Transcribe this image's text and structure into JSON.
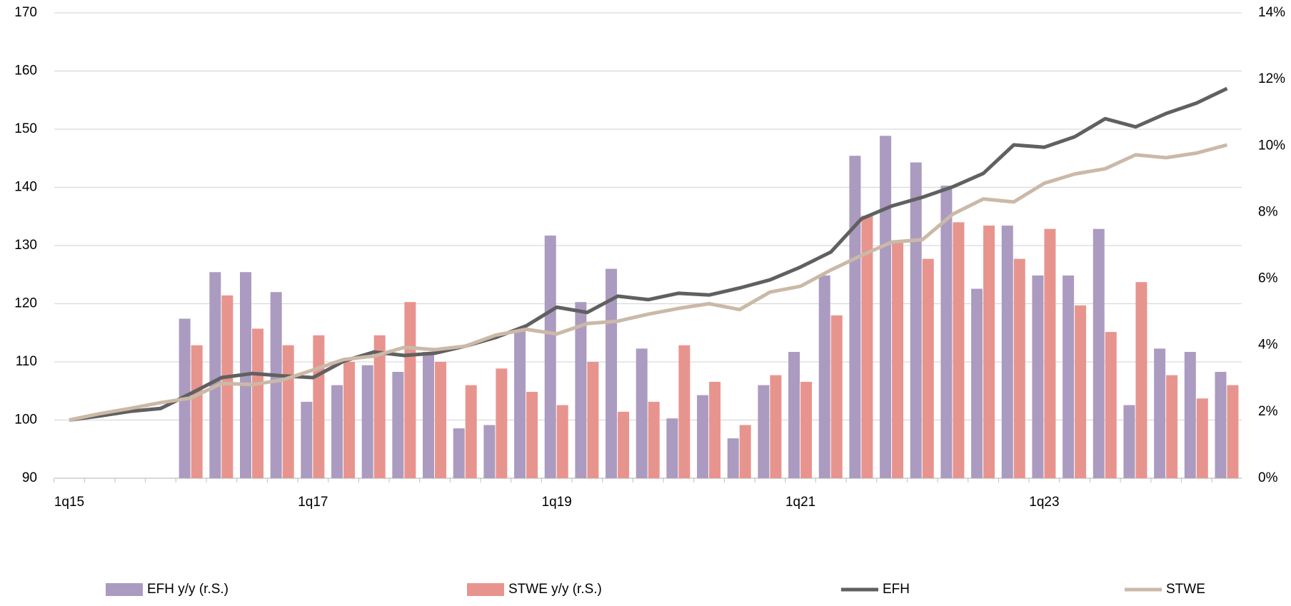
{
  "chart_data": {
    "type": "bar_line",
    "categories": [
      "1q15",
      null,
      null,
      null,
      null,
      null,
      null,
      null,
      "1q17",
      null,
      null,
      null,
      null,
      null,
      null,
      null,
      "1q19",
      null,
      null,
      null,
      null,
      null,
      null,
      null,
      "1q21",
      null,
      null,
      null,
      null,
      null,
      null,
      null,
      "1q23",
      null,
      null,
      null,
      null,
      null,
      null
    ],
    "series": [
      {
        "name": "EFH y/y (r.S.)",
        "kind": "bar",
        "axis": "y2",
        "color": "#ab9bc0",
        "values": [
          null,
          null,
          null,
          null,
          4.8,
          6.2,
          6.2,
          5.6,
          2.3,
          2.8,
          3.4,
          3.2,
          3.8,
          1.5,
          1.6,
          4.5,
          7.3,
          5.3,
          6.3,
          3.9,
          1.8,
          2.5,
          1.2,
          2.8,
          3.8,
          6.1,
          9.7,
          10.3,
          9.5,
          8.8,
          5.7,
          7.6,
          6.1,
          6.1,
          7.5,
          2.2,
          3.9,
          3.8,
          3.2
        ]
      },
      {
        "name": "STWE y/y (r.S.)",
        "kind": "bar",
        "axis": "y2",
        "color": "#e8948e",
        "values": [
          null,
          null,
          null,
          null,
          4.0,
          5.5,
          4.5,
          4.0,
          4.3,
          3.5,
          4.3,
          5.3,
          3.5,
          2.8,
          3.3,
          2.6,
          2.2,
          3.5,
          2.0,
          2.3,
          4.0,
          2.9,
          1.6,
          3.1,
          2.9,
          4.9,
          7.9,
          7.1,
          6.6,
          7.7,
          7.6,
          6.6,
          7.5,
          5.2,
          4.4,
          5.9,
          3.1,
          2.4,
          2.8
        ]
      },
      {
        "name": "EFH",
        "kind": "line",
        "axis": "y",
        "color": "#606060",
        "values": [
          100,
          100.7,
          101.5,
          102,
          104.6,
          107.3,
          108,
          107.6,
          107.3,
          110.1,
          111.7,
          111.1,
          111.5,
          112.7,
          114.2,
          116.2,
          119.4,
          118.5,
          121.3,
          120.7,
          121.8,
          121.5,
          122.7,
          124.1,
          126.3,
          128.9,
          134.6,
          136.8,
          138.3,
          140.1,
          142.4,
          147.3,
          146.9,
          148.7,
          151.8,
          150.4,
          152.7,
          154.5,
          157.0
        ]
      },
      {
        "name": "STWE",
        "kind": "line",
        "axis": "y",
        "color": "#cbb9a7",
        "values": [
          100,
          101.1,
          102,
          103,
          103.8,
          106.3,
          106.1,
          106.9,
          108.6,
          110.4,
          111,
          112.5,
          112.1,
          112.7,
          114.6,
          115.6,
          114.8,
          116.6,
          117,
          118.2,
          119.2,
          120,
          119,
          122,
          123,
          125.8,
          128.3,
          130.6,
          131,
          135.4,
          138,
          137.5,
          140.7,
          142.3,
          143.2,
          145.6,
          145.1,
          145.9,
          147.3
        ]
      }
    ],
    "ylim": [
      90,
      170
    ],
    "yticks": [
      90,
      100,
      110,
      120,
      130,
      140,
      150,
      160,
      170
    ],
    "y2lim": [
      0,
      14
    ],
    "y2ticks": [
      {
        "value": 0,
        "label": "0%"
      },
      {
        "value": 2,
        "label": "2%"
      },
      {
        "value": 4,
        "label": "4%"
      },
      {
        "value": 6,
        "label": "6%"
      },
      {
        "value": 8,
        "label": "8%"
      },
      {
        "value": 10,
        "label": "10%"
      },
      {
        "value": 12,
        "label": "12%"
      },
      {
        "value": 14,
        "label": "14%"
      }
    ],
    "grid": true,
    "legend": "bottom"
  }
}
